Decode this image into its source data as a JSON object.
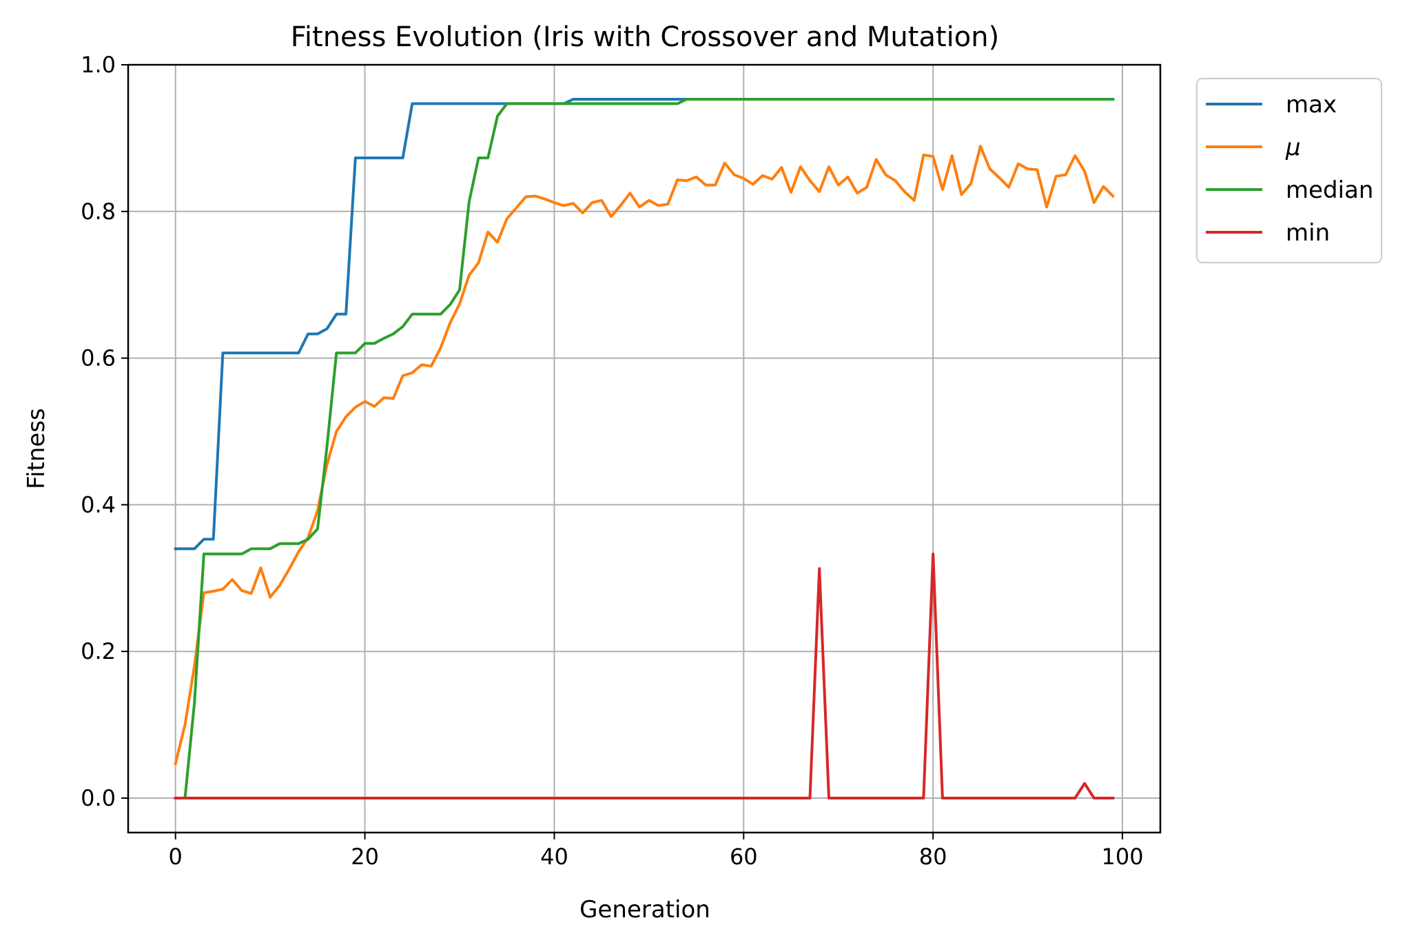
{
  "chart_data": {
    "type": "line",
    "title": "Fitness Evolution (Iris with Crossover and Mutation)",
    "xlabel": "Generation",
    "ylabel": "Fitness",
    "xlim": [
      -5,
      104
    ],
    "ylim": [
      -0.047,
      1.0
    ],
    "xticks": [
      0,
      20,
      40,
      60,
      80,
      100
    ],
    "xtick_labels": [
      "0",
      "20",
      "40",
      "60",
      "80",
      "100"
    ],
    "yticks": [
      0.0,
      0.2,
      0.4,
      0.6,
      0.8,
      1.0
    ],
    "ytick_labels": [
      "0.0",
      "0.2",
      "0.4",
      "0.6",
      "0.8",
      "1.0"
    ],
    "grid": true,
    "legend_placement": "outside-top-right",
    "x": [
      0,
      1,
      2,
      3,
      4,
      5,
      6,
      7,
      8,
      9,
      10,
      11,
      12,
      13,
      14,
      15,
      16,
      17,
      18,
      19,
      20,
      21,
      22,
      23,
      24,
      25,
      26,
      27,
      28,
      29,
      30,
      31,
      32,
      33,
      34,
      35,
      36,
      37,
      38,
      39,
      40,
      41,
      42,
      43,
      44,
      45,
      46,
      47,
      48,
      49,
      50,
      51,
      52,
      53,
      54,
      55,
      56,
      57,
      58,
      59,
      60,
      61,
      62,
      63,
      64,
      65,
      66,
      67,
      68,
      69,
      70,
      71,
      72,
      73,
      74,
      75,
      76,
      77,
      78,
      79,
      80,
      81,
      82,
      83,
      84,
      85,
      86,
      87,
      88,
      89,
      90,
      91,
      92,
      93,
      94,
      95,
      96,
      97,
      98,
      99
    ],
    "series": [
      {
        "name": "max",
        "color": "#1f77b4",
        "values": [
          0.34,
          0.34,
          0.34,
          0.353,
          0.353,
          0.607,
          0.607,
          0.607,
          0.607,
          0.607,
          0.607,
          0.607,
          0.607,
          0.607,
          0.633,
          0.633,
          0.64,
          0.66,
          0.66,
          0.873,
          0.873,
          0.873,
          0.873,
          0.873,
          0.873,
          0.947,
          0.947,
          0.947,
          0.947,
          0.947,
          0.947,
          0.947,
          0.947,
          0.947,
          0.947,
          0.947,
          0.947,
          0.947,
          0.947,
          0.947,
          0.947,
          0.947,
          0.953,
          0.953,
          0.953,
          0.953,
          0.953,
          0.953,
          0.953,
          0.953,
          0.953,
          0.953,
          0.953,
          0.953,
          0.953,
          0.953,
          0.953,
          0.953,
          0.953,
          0.953,
          0.953,
          0.953,
          0.953,
          0.953,
          0.953,
          0.953,
          0.953,
          0.953,
          0.953,
          0.953,
          0.953,
          0.953,
          0.953,
          0.953,
          0.953,
          0.953,
          0.953,
          0.953,
          0.953,
          0.953,
          0.953,
          0.953,
          0.953,
          0.953,
          0.953,
          0.953,
          0.953,
          0.953,
          0.953,
          0.953,
          0.953,
          0.953,
          0.953,
          0.953,
          0.953,
          0.953,
          0.953,
          0.953,
          0.953,
          0.953
        ]
      },
      {
        "name": "μ",
        "color": "#ff7f0e",
        "values": [
          0.047,
          0.1,
          0.18,
          0.28,
          0.282,
          0.285,
          0.298,
          0.283,
          0.279,
          0.314,
          0.274,
          0.29,
          0.312,
          0.336,
          0.355,
          0.392,
          0.455,
          0.5,
          0.52,
          0.533,
          0.541,
          0.534,
          0.546,
          0.545,
          0.576,
          0.58,
          0.591,
          0.589,
          0.614,
          0.648,
          0.674,
          0.713,
          0.73,
          0.772,
          0.758,
          0.79,
          0.805,
          0.82,
          0.821,
          0.817,
          0.812,
          0.808,
          0.811,
          0.798,
          0.812,
          0.815,
          0.793,
          0.808,
          0.825,
          0.806,
          0.815,
          0.808,
          0.81,
          0.843,
          0.842,
          0.847,
          0.836,
          0.836,
          0.866,
          0.85,
          0.845,
          0.837,
          0.849,
          0.844,
          0.86,
          0.826,
          0.861,
          0.842,
          0.827,
          0.861,
          0.836,
          0.847,
          0.825,
          0.833,
          0.871,
          0.85,
          0.842,
          0.827,
          0.815,
          0.877,
          0.875,
          0.83,
          0.876,
          0.823,
          0.838,
          0.889,
          0.858,
          0.846,
          0.833,
          0.865,
          0.858,
          0.857,
          0.806,
          0.848,
          0.85,
          0.876,
          0.855,
          0.812,
          0.834,
          0.821
        ]
      },
      {
        "name": "median",
        "color": "#2ca02c",
        "values": [
          0.0,
          0.0,
          0.13,
          0.333,
          0.333,
          0.333,
          0.333,
          0.333,
          0.34,
          0.34,
          0.34,
          0.347,
          0.347,
          0.347,
          0.353,
          0.367,
          0.48,
          0.607,
          0.607,
          0.607,
          0.62,
          0.62,
          0.627,
          0.633,
          0.643,
          0.66,
          0.66,
          0.66,
          0.66,
          0.673,
          0.693,
          0.813,
          0.873,
          0.873,
          0.93,
          0.947,
          0.947,
          0.947,
          0.947,
          0.947,
          0.947,
          0.947,
          0.947,
          0.947,
          0.947,
          0.947,
          0.947,
          0.947,
          0.947,
          0.947,
          0.947,
          0.947,
          0.947,
          0.947,
          0.953,
          0.953,
          0.953,
          0.953,
          0.953,
          0.953,
          0.953,
          0.953,
          0.953,
          0.953,
          0.953,
          0.953,
          0.953,
          0.953,
          0.953,
          0.953,
          0.953,
          0.953,
          0.953,
          0.953,
          0.953,
          0.953,
          0.953,
          0.953,
          0.953,
          0.953,
          0.953,
          0.953,
          0.953,
          0.953,
          0.953,
          0.953,
          0.953,
          0.953,
          0.953,
          0.953,
          0.953,
          0.953,
          0.953,
          0.953,
          0.953,
          0.953,
          0.953,
          0.953,
          0.953,
          0.953
        ]
      },
      {
        "name": "min",
        "color": "#d62728",
        "values": [
          0,
          0,
          0,
          0,
          0,
          0,
          0,
          0,
          0,
          0,
          0,
          0,
          0,
          0,
          0,
          0,
          0,
          0,
          0,
          0,
          0,
          0,
          0,
          0,
          0,
          0,
          0,
          0,
          0,
          0,
          0,
          0,
          0,
          0,
          0,
          0,
          0,
          0,
          0,
          0,
          0,
          0,
          0,
          0,
          0,
          0,
          0,
          0,
          0,
          0,
          0,
          0,
          0,
          0,
          0,
          0,
          0,
          0,
          0,
          0,
          0,
          0,
          0,
          0,
          0,
          0,
          0,
          0,
          0.313,
          0,
          0,
          0,
          0,
          0,
          0,
          0,
          0,
          0,
          0,
          0,
          0.333,
          0,
          0,
          0,
          0,
          0,
          0,
          0,
          0,
          0,
          0,
          0,
          0,
          0,
          0,
          0,
          0.02,
          0,
          0,
          0
        ]
      }
    ]
  }
}
